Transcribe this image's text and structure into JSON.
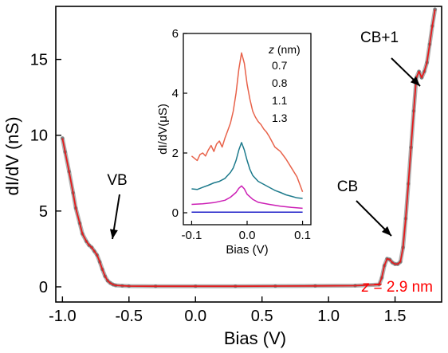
{
  "chart_data": [
    {
      "id": "main",
      "type": "line",
      "xlabel": "Bias (V)",
      "ylabel": "dI/dV (nS)",
      "xlim": [
        -1.05,
        1.85
      ],
      "ylim": [
        -1.0,
        18.5
      ],
      "x_ticks": [
        -1.0,
        -0.5,
        0.0,
        0.5,
        1.0,
        1.5
      ],
      "x_tick_labels": [
        "-1.0",
        "-0.5",
        "0.0",
        "0.5",
        "1.0",
        "1.5"
      ],
      "y_ticks": [
        0,
        5,
        10,
        15
      ],
      "y_tick_labels": [
        "0",
        "5",
        "10",
        "15"
      ],
      "series": [
        {
          "color": "#e41a1c",
          "marker_color": "#6e6e6e",
          "x": [
            -1.0,
            -0.98,
            -0.95,
            -0.92,
            -0.9,
            -0.87,
            -0.85,
            -0.82,
            -0.8,
            -0.78,
            -0.76,
            -0.74,
            -0.72,
            -0.7,
            -0.68,
            -0.66,
            -0.64,
            -0.62,
            -0.6,
            -0.55,
            -0.5,
            -0.3,
            0.0,
            0.3,
            0.6,
            0.9,
            1.2,
            1.38,
            1.4,
            1.42,
            1.44,
            1.46,
            1.48,
            1.5,
            1.52,
            1.54,
            1.56,
            1.58,
            1.6,
            1.62,
            1.64,
            1.66,
            1.68,
            1.7,
            1.72,
            1.74,
            1.76,
            1.78,
            1.8
          ],
          "y": [
            9.8,
            8.9,
            7.6,
            6.2,
            5.2,
            4.2,
            3.5,
            3.0,
            2.75,
            2.6,
            2.35,
            2.1,
            1.65,
            1.15,
            0.7,
            0.4,
            0.25,
            0.15,
            0.1,
            0.07,
            0.05,
            0.04,
            0.04,
            0.04,
            0.05,
            0.06,
            0.08,
            0.15,
            0.6,
            1.4,
            1.85,
            1.8,
            1.6,
            1.5,
            1.5,
            1.65,
            2.6,
            4.5,
            6.8,
            9.2,
            11.6,
            13.8,
            14.2,
            13.8,
            14.2,
            14.8,
            16.0,
            17.2,
            18.3
          ]
        }
      ],
      "annotations": [
        {
          "text": "VB",
          "x": -0.72,
          "y": 1.6
        },
        {
          "text": "CB",
          "x": 1.46,
          "y": 2.0
        },
        {
          "text": "CB+1",
          "x": 1.65,
          "y": 14.0
        }
      ],
      "label": {
        "prefix": "z",
        "text": " = 2.9 nm",
        "color": "#ff0000"
      }
    },
    {
      "id": "inset",
      "type": "line",
      "xlabel": "Bias (V)",
      "ylabel": "dI/dV(μS)",
      "xlim": [
        -0.115,
        0.115
      ],
      "ylim": [
        -0.4,
        6.0
      ],
      "x_ticks": [
        -0.1,
        0.0,
        0.1
      ],
      "x_tick_labels": [
        "-0.1",
        "0.0",
        "0.1"
      ],
      "y_ticks": [
        0,
        2,
        4,
        6
      ],
      "y_tick_labels": [
        "0",
        "2",
        "4",
        "6"
      ],
      "legend_title": {
        "prefix": "z",
        "text": " (nm)"
      },
      "series": [
        {
          "name": "0.7",
          "color": "#e8624a",
          "x": [
            -0.1,
            -0.09,
            -0.085,
            -0.08,
            -0.075,
            -0.07,
            -0.065,
            -0.06,
            -0.055,
            -0.05,
            -0.045,
            -0.04,
            -0.035,
            -0.03,
            -0.025,
            -0.02,
            -0.015,
            -0.01,
            -0.005,
            0.0,
            0.005,
            0.01,
            0.015,
            0.02,
            0.025,
            0.03,
            0.035,
            0.04,
            0.05,
            0.06,
            0.07,
            0.08,
            0.09,
            0.1
          ],
          "y": [
            1.9,
            1.75,
            1.95,
            2.0,
            1.9,
            2.1,
            2.25,
            2.05,
            2.3,
            2.4,
            2.2,
            2.5,
            2.75,
            3.0,
            3.4,
            4.0,
            4.8,
            5.35,
            5.0,
            4.3,
            3.8,
            3.4,
            3.2,
            3.05,
            2.95,
            2.8,
            2.7,
            2.55,
            2.2,
            2.05,
            1.8,
            1.5,
            1.2,
            0.7
          ]
        },
        {
          "name": "0.8",
          "color": "#1d7a8c",
          "x": [
            -0.1,
            -0.09,
            -0.08,
            -0.07,
            -0.06,
            -0.05,
            -0.04,
            -0.03,
            -0.025,
            -0.02,
            -0.015,
            -0.01,
            -0.005,
            0.0,
            0.005,
            0.01,
            0.02,
            0.03,
            0.04,
            0.05,
            0.06,
            0.07,
            0.08,
            0.09,
            0.1
          ],
          "y": [
            0.8,
            0.78,
            0.85,
            0.92,
            1.0,
            1.05,
            1.15,
            1.35,
            1.5,
            1.75,
            2.1,
            2.35,
            2.1,
            1.75,
            1.45,
            1.25,
            1.05,
            0.95,
            0.85,
            0.75,
            0.68,
            0.6,
            0.55,
            0.5,
            0.48
          ]
        },
        {
          "name": "1.1",
          "color": "#cc1fb5",
          "x": [
            -0.1,
            -0.08,
            -0.06,
            -0.04,
            -0.03,
            -0.02,
            -0.015,
            -0.01,
            -0.005,
            0.0,
            0.01,
            0.02,
            0.04,
            0.06,
            0.08,
            0.1
          ],
          "y": [
            0.28,
            0.3,
            0.34,
            0.42,
            0.52,
            0.68,
            0.82,
            0.9,
            0.8,
            0.62,
            0.45,
            0.35,
            0.28,
            0.22,
            0.18,
            0.15
          ]
        },
        {
          "name": "1.3",
          "color": "#2020c8",
          "x": [
            -0.1,
            0.0,
            0.1
          ],
          "y": [
            0.02,
            0.02,
            0.02
          ]
        }
      ]
    }
  ]
}
